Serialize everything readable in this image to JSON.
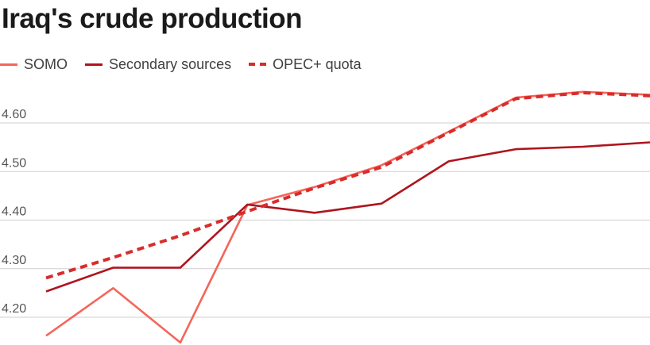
{
  "title": "Iraq's crude production",
  "legend": [
    {
      "label": "SOMO",
      "style": "solid",
      "color": "#f4665a"
    },
    {
      "label": "Secondary sources",
      "style": "solid",
      "color": "#b0141e"
    },
    {
      "label": "OPEC+ quota",
      "style": "dashed",
      "color": "#d92c2c"
    }
  ],
  "chart_data": {
    "type": "line",
    "title": "Iraq's crude production",
    "xlabel": "",
    "ylabel": "",
    "x": [
      1,
      2,
      3,
      4,
      5,
      6,
      7,
      8,
      9,
      10
    ],
    "ylim": [
      4.15,
      4.68
    ],
    "yticks": [
      "4.20",
      "4.30",
      "4.40",
      "4.50",
      "4.60"
    ],
    "grid": true,
    "legend_position": "top-left",
    "series": [
      {
        "name": "SOMO",
        "color": "#f4665a",
        "style": "solid",
        "values": [
          4.162,
          4.26,
          4.148,
          4.431,
          4.468,
          4.513,
          4.582,
          4.652,
          4.664,
          4.658
        ]
      },
      {
        "name": "Secondary sources",
        "color": "#b0141e",
        "style": "solid",
        "values": [
          4.253,
          4.302,
          4.302,
          4.432,
          4.415,
          4.434,
          4.521,
          4.546,
          4.551,
          4.56
        ]
      },
      {
        "name": "OPEC+ quota",
        "color": "#d92c2c",
        "style": "dashed",
        "values": [
          4.281,
          4.323,
          4.368,
          4.418,
          4.466,
          4.509,
          4.58,
          4.65,
          4.662,
          4.656
        ]
      }
    ]
  }
}
